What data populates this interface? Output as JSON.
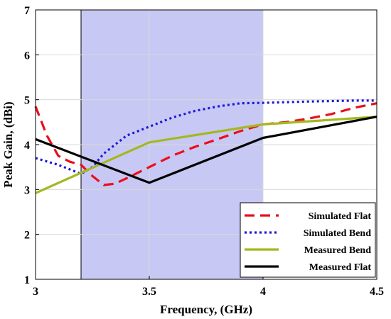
{
  "chart_data": {
    "type": "line",
    "title": "",
    "xlabel": "Frequency, (GHz)",
    "ylabel": "Peak Gain, (dBi)",
    "xlim": [
      3,
      4.5
    ],
    "ylim": [
      1,
      7
    ],
    "xticks": [
      "3",
      "3.5",
      "4",
      "4.5"
    ],
    "yticks": [
      "1",
      "2",
      "3",
      "4",
      "5",
      "6",
      "7"
    ],
    "grid": true,
    "legend_position": "bottom-right",
    "highlight_band": {
      "x": [
        3.2,
        4.0
      ],
      "color": "#c8c8f4"
    },
    "series": [
      {
        "name": "Simulated Flat",
        "color": "#e8101a",
        "style": "dashed",
        "x": [
          3.0,
          3.05,
          3.1,
          3.15,
          3.2,
          3.25,
          3.3,
          3.35,
          3.4,
          3.5,
          3.6,
          3.7,
          3.8,
          3.9,
          4.0,
          4.1,
          4.2,
          4.3,
          4.4,
          4.5
        ],
        "y": [
          4.85,
          4.2,
          3.75,
          3.62,
          3.55,
          3.3,
          3.1,
          3.13,
          3.25,
          3.5,
          3.75,
          3.95,
          4.12,
          4.3,
          4.45,
          4.5,
          4.58,
          4.68,
          4.82,
          4.92
        ]
      },
      {
        "name": "Simulated Bend",
        "color": "#1a1ad8",
        "style": "dotted",
        "x": [
          3.0,
          3.1,
          3.2,
          3.25,
          3.3,
          3.35,
          3.4,
          3.5,
          3.6,
          3.7,
          3.8,
          3.9,
          4.0,
          4.2,
          4.4,
          4.5
        ],
        "y": [
          3.7,
          3.55,
          3.35,
          3.5,
          3.8,
          4.0,
          4.2,
          4.4,
          4.6,
          4.75,
          4.85,
          4.92,
          4.93,
          4.96,
          4.98,
          4.98
        ]
      },
      {
        "name": "Measured Bend",
        "color": "#a4b81e",
        "style": "solid",
        "x": [
          3.0,
          3.5,
          4.0,
          4.5
        ],
        "y": [
          2.92,
          4.05,
          4.45,
          4.62
        ]
      },
      {
        "name": "Measured Flat",
        "color": "#000000",
        "style": "solid",
        "x": [
          3.0,
          3.5,
          4.0,
          4.5
        ],
        "y": [
          4.12,
          3.15,
          4.15,
          4.62
        ]
      }
    ]
  }
}
